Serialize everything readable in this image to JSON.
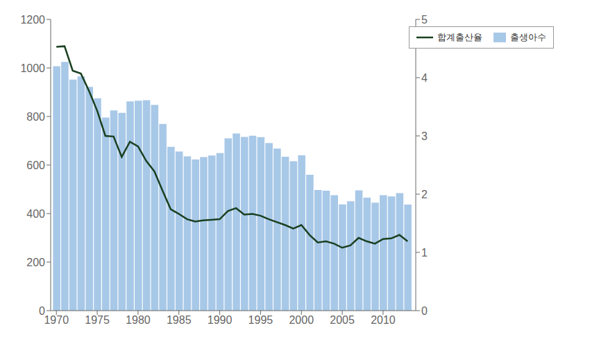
{
  "chart_data": {
    "type": "bar",
    "x": [
      1970,
      1971,
      1972,
      1973,
      1974,
      1975,
      1976,
      1977,
      1978,
      1979,
      1980,
      1981,
      1982,
      1983,
      1984,
      1985,
      1986,
      1987,
      1988,
      1989,
      1990,
      1991,
      1992,
      1993,
      1994,
      1995,
      1996,
      1997,
      1998,
      1999,
      2000,
      2001,
      2002,
      2003,
      2004,
      2005,
      2006,
      2007,
      2008,
      2009,
      2010,
      2011,
      2012,
      2013
    ],
    "series": [
      {
        "name": "합계출산율",
        "type": "line",
        "axis": "y2",
        "color": "#1a4020",
        "values": [
          4.53,
          4.54,
          4.12,
          4.07,
          3.77,
          3.43,
          3.0,
          2.99,
          2.64,
          2.9,
          2.82,
          2.57,
          2.39,
          2.06,
          1.74,
          1.66,
          1.57,
          1.53,
          1.55,
          1.56,
          1.57,
          1.71,
          1.76,
          1.65,
          1.66,
          1.63,
          1.57,
          1.52,
          1.47,
          1.41,
          1.47,
          1.3,
          1.17,
          1.19,
          1.15,
          1.08,
          1.12,
          1.25,
          1.19,
          1.15,
          1.23,
          1.24,
          1.3,
          1.19
        ]
      },
      {
        "name": "출생아수",
        "type": "bar",
        "color": "#a8c8e8",
        "values": [
          1007,
          1025,
          952,
          965,
          922,
          875,
          796,
          825,
          815,
          862,
          865,
          867,
          848,
          769,
          675,
          656,
          636,
          623,
          633,
          639,
          649,
          710,
          730,
          716,
          721,
          715,
          691,
          668,
          634,
          616,
          640,
          560,
          497,
          494,
          476,
          438,
          451,
          496,
          466,
          445,
          476,
          471,
          484,
          437
        ]
      }
    ],
    "xlim": [
      1969.3,
      2014.0
    ],
    "xticks": [
      1970,
      1975,
      1980,
      1985,
      1990,
      1995,
      2000,
      2005,
      2010
    ],
    "ylim": [
      0,
      1200
    ],
    "yticks": [
      0,
      200,
      400,
      600,
      800,
      1000,
      1200
    ],
    "y2lim": [
      0,
      5
    ],
    "y2ticks": [
      0,
      1,
      2,
      3,
      4,
      5
    ],
    "grid": false,
    "legend": "upper right"
  }
}
